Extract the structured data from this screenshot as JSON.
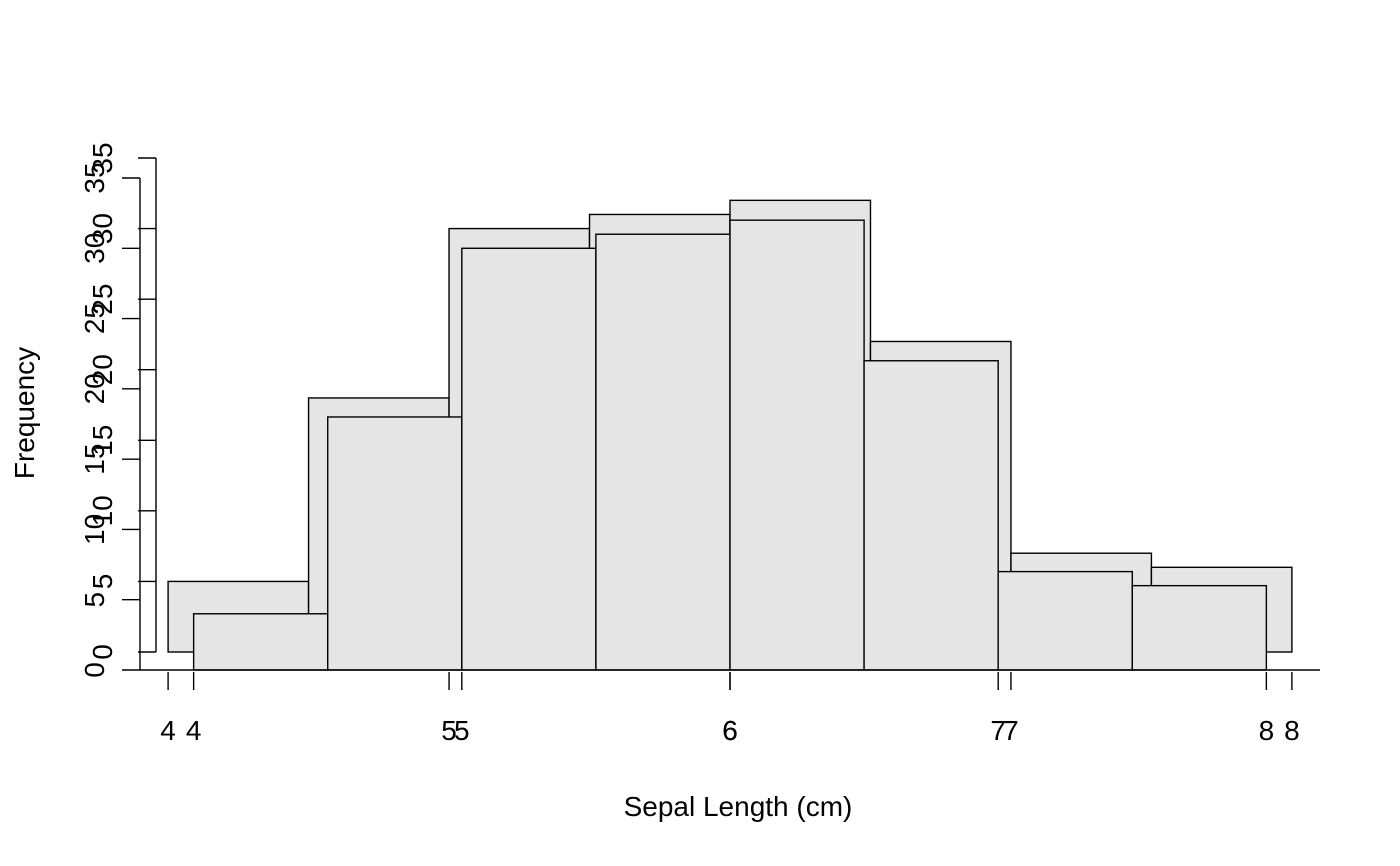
{
  "chart_data": [
    {
      "type": "bar",
      "xlabel": "Sepal Length (cm)",
      "ylabel": "Frequency",
      "xlim": [
        3.9,
        8.1
      ],
      "ylim": [
        0,
        35
      ],
      "xticks": [
        "4",
        "5",
        "6",
        "7",
        "8"
      ],
      "yticks": [
        "0",
        "5",
        "10",
        "15",
        "20",
        "25",
        "30",
        "35"
      ],
      "bins": [
        {
          "start": 4.0,
          "end": 4.5,
          "value": 5
        },
        {
          "start": 4.5,
          "end": 5.0,
          "value": 18
        },
        {
          "start": 5.0,
          "end": 5.5,
          "value": 30
        },
        {
          "start": 5.5,
          "end": 6.0,
          "value": 31
        },
        {
          "start": 6.0,
          "end": 6.5,
          "value": 32
        },
        {
          "start": 6.5,
          "end": 7.0,
          "value": 22
        },
        {
          "start": 7.0,
          "end": 7.5,
          "value": 7
        },
        {
          "start": 7.5,
          "end": 8.0,
          "value": 6
        }
      ]
    },
    {
      "type": "bar",
      "xlabel": "Sepal Length (cm)",
      "ylabel": "Frequency",
      "xlim": [
        3.8,
        8.2
      ],
      "ylim": [
        0,
        35
      ],
      "xticks": [
        "4",
        "5",
        "6",
        "7",
        "8"
      ],
      "yticks": [
        "0",
        "5",
        "10",
        "15",
        "20",
        "25",
        "30",
        "35"
      ],
      "bins": [
        {
          "start": 4.0,
          "end": 4.5,
          "value": 4
        },
        {
          "start": 4.5,
          "end": 5.0,
          "value": 18
        },
        {
          "start": 5.0,
          "end": 5.5,
          "value": 30
        },
        {
          "start": 5.5,
          "end": 6.0,
          "value": 31
        },
        {
          "start": 6.0,
          "end": 6.5,
          "value": 32
        },
        {
          "start": 6.5,
          "end": 7.0,
          "value": 22
        },
        {
          "start": 7.0,
          "end": 7.5,
          "value": 7
        },
        {
          "start": 7.5,
          "end": 8.0,
          "value": 6
        }
      ]
    }
  ]
}
